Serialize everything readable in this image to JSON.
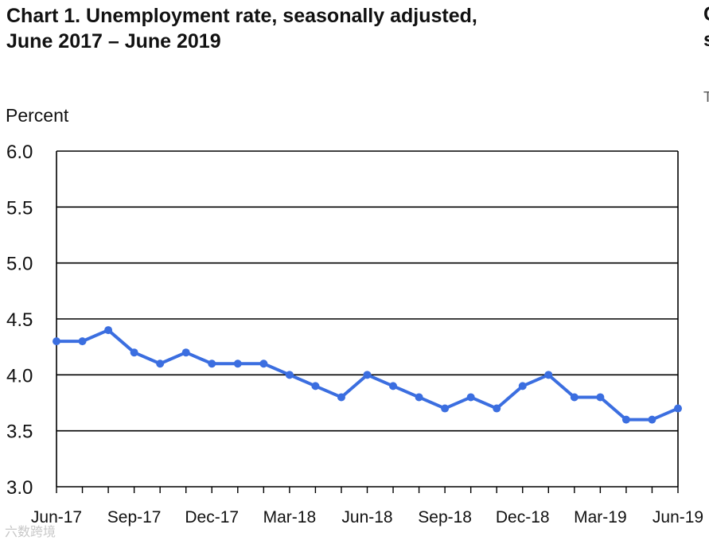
{
  "chart_data": {
    "type": "line",
    "title_line1": "Chart 1. Unemployment rate, seasonally adjusted,",
    "title_line2": "June 2017 – June 2019",
    "ylabel": "Percent",
    "ylim": [
      3.0,
      6.0
    ],
    "yticks": [
      "3.0",
      "3.5",
      "4.0",
      "4.5",
      "5.0",
      "5.5",
      "6.0"
    ],
    "grid": "horizontal",
    "categories": [
      "Jun-17",
      "Jul-17",
      "Aug-17",
      "Sep-17",
      "Oct-17",
      "Nov-17",
      "Dec-17",
      "Jan-18",
      "Feb-18",
      "Mar-18",
      "Apr-18",
      "May-18",
      "Jun-18",
      "Jul-18",
      "Aug-18",
      "Sep-18",
      "Oct-18",
      "Nov-18",
      "Dec-18",
      "Jan-19",
      "Feb-19",
      "Mar-19",
      "Apr-19",
      "May-19",
      "Jun-19"
    ],
    "xtick_labels": [
      "Jun-17",
      "Sep-17",
      "Dec-17",
      "Mar-18",
      "Jun-18",
      "Sep-18",
      "Dec-18",
      "Mar-19",
      "Jun-19"
    ],
    "series": [
      {
        "values": [
          4.3,
          4.3,
          4.4,
          4.2,
          4.1,
          4.2,
          4.1,
          4.1,
          4.1,
          4.0,
          3.9,
          3.8,
          4.0,
          3.9,
          3.8,
          3.7,
          3.8,
          3.7,
          3.9,
          4.0,
          3.8,
          3.8,
          3.6,
          3.6,
          3.7
        ],
        "color": "#3b6ee0"
      }
    ]
  },
  "cut_text": [
    "C",
    "s",
    "T"
  ],
  "watermark": "六数跨境"
}
